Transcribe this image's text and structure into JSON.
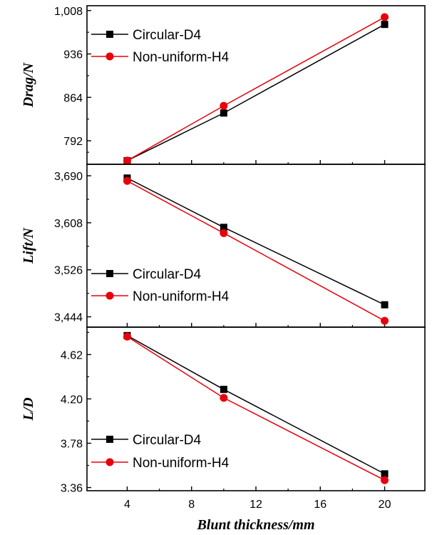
{
  "chart_data": {
    "type": "line",
    "shared_x": {
      "label": "Blunt thickness/mm",
      "ticks": [
        4,
        8,
        12,
        16,
        20
      ],
      "range": [
        1.5,
        22.5
      ]
    },
    "panels": [
      {
        "ylabel": "Drag/N",
        "ylim": [
          753,
          1016
        ],
        "yticks": [
          792,
          864,
          936,
          1008
        ],
        "ytick_labels": [
          "792",
          "864",
          "936",
          "1,008"
        ],
        "x": [
          4,
          10,
          20
        ],
        "series": [
          {
            "name": "Circular-D4",
            "values": [
              759,
              838,
              985
            ],
            "color": "#000000",
            "marker": "square"
          },
          {
            "name": "Non-uniform-H4",
            "values": [
              759,
              850,
              997
            ],
            "color": "#e8000b",
            "marker": "circle"
          }
        ],
        "legend": "top-left"
      },
      {
        "ylabel": "Lift/N",
        "ylim": [
          3426,
          3710
        ],
        "yticks": [
          3444,
          3526,
          3608,
          3690
        ],
        "ytick_labels": [
          "3,444",
          "3,526",
          "3,608",
          "3,690"
        ],
        "x": [
          4,
          10,
          20
        ],
        "series": [
          {
            "name": "Circular-D4",
            "values": [
              3686,
              3600,
              3465
            ],
            "color": "#000000",
            "marker": "square"
          },
          {
            "name": "Non-uniform-H4",
            "values": [
              3681,
              3590,
              3437
            ],
            "color": "#e8000b",
            "marker": "circle"
          }
        ],
        "legend": "bottom-left"
      },
      {
        "ylabel": "L/D",
        "ylim": [
          3.33,
          4.88
        ],
        "yticks": [
          3.36,
          3.78,
          4.2,
          4.62
        ],
        "ytick_labels": [
          "3.36",
          "3.78",
          "4.20",
          "4.62"
        ],
        "x": [
          4,
          10,
          20
        ],
        "series": [
          {
            "name": "Circular-D4",
            "values": [
              4.8,
              4.29,
              3.49
            ],
            "color": "#000000",
            "marker": "square"
          },
          {
            "name": "Non-uniform-H4",
            "values": [
              4.79,
              4.21,
              3.43
            ],
            "color": "#e8000b",
            "marker": "circle"
          }
        ],
        "legend": "bottom-left"
      }
    ]
  }
}
